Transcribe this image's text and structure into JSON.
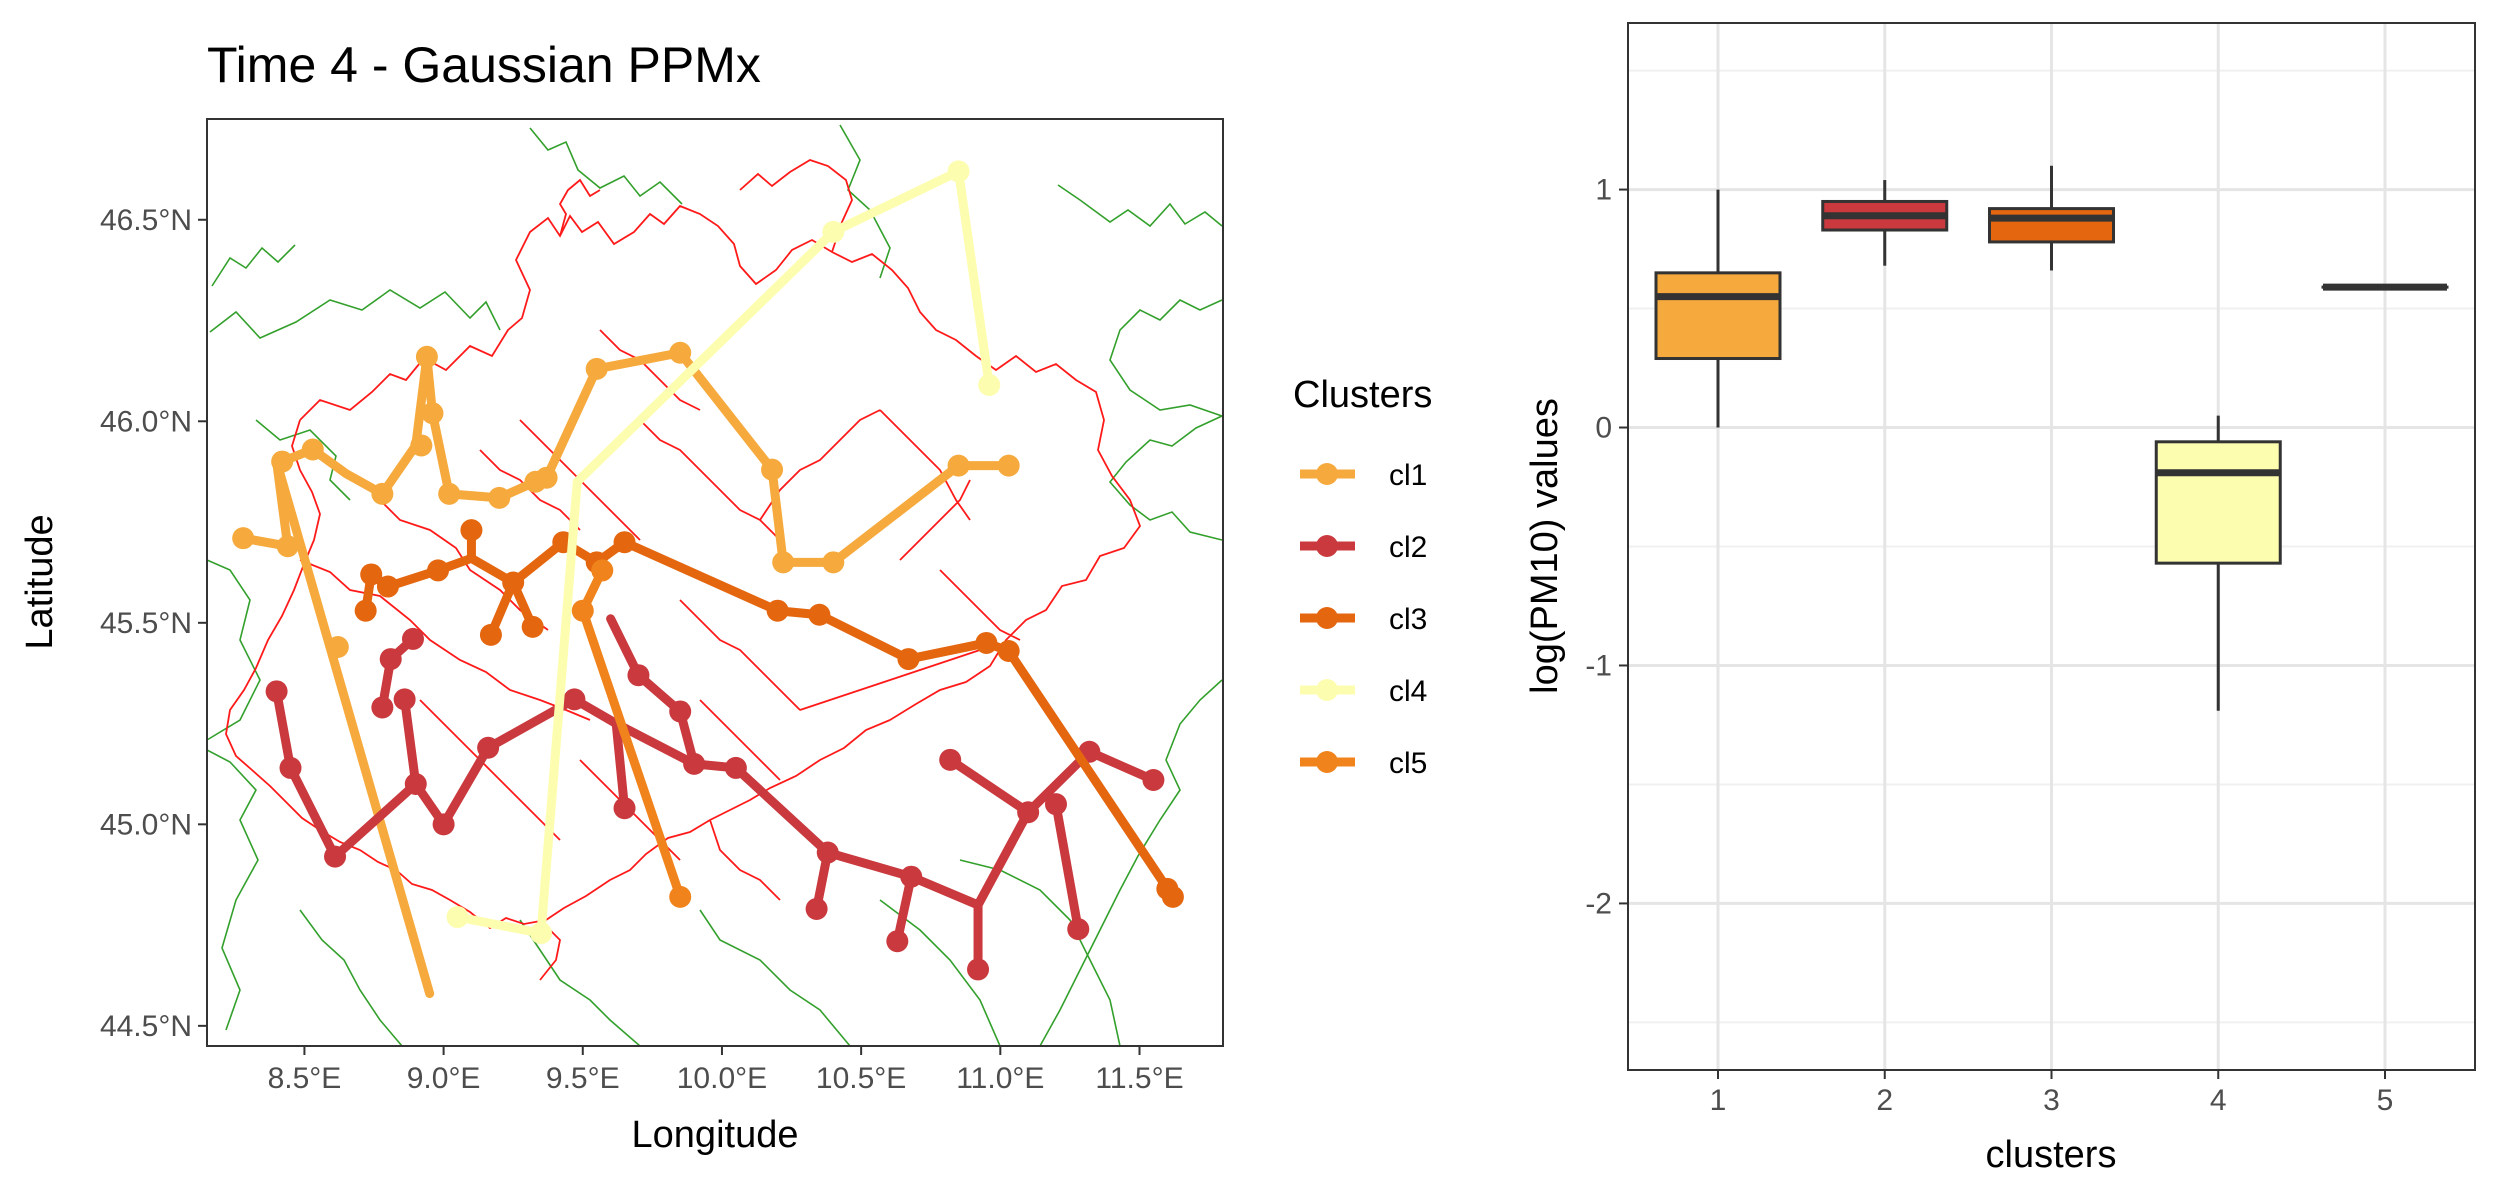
{
  "chart_data": [
    {
      "type": "scatter",
      "title": "Time 4 - Gaussian PPMx",
      "xlabel": "Longitude",
      "ylabel": "Latitude",
      "xlim": [
        8.15,
        11.8
      ],
      "ylim": [
        44.45,
        46.75
      ],
      "x_ticks": [
        8.5,
        9.0,
        9.5,
        10.0,
        10.5,
        11.0,
        11.5
      ],
      "x_tick_labels": [
        "8.5°E",
        "9.0°E",
        "9.5°E",
        "10.0°E",
        "10.5°E",
        "11.0°E",
        "11.5°E"
      ],
      "y_ticks": [
        44.5,
        45.0,
        45.5,
        46.0,
        46.5
      ],
      "y_tick_labels": [
        "44.5°N",
        "45.0°N",
        "45.5°N",
        "46.0°N",
        "46.5°N"
      ],
      "grid": false,
      "legend_title": "Clusters",
      "legend_position": "right",
      "series": [
        {
          "name": "cl1",
          "color": "#F6AA3D",
          "points": [
            [
              8.28,
              45.71
            ],
            [
              8.44,
              45.69
            ],
            [
              8.62,
              45.44
            ],
            [
              8.42,
              45.9
            ],
            [
              8.53,
              45.93
            ],
            [
              8.78,
              45.82
            ],
            [
              8.92,
              45.94
            ],
            [
              8.94,
              46.16
            ],
            [
              8.96,
              46.02
            ],
            [
              9.02,
              45.82
            ],
            [
              9.2,
              45.81
            ],
            [
              9.33,
              45.85
            ],
            [
              9.37,
              45.86
            ],
            [
              9.55,
              46.13
            ],
            [
              9.85,
              46.17
            ],
            [
              10.18,
              45.88
            ],
            [
              10.22,
              45.65
            ],
            [
              10.4,
              45.65
            ],
            [
              10.85,
              45.89
            ],
            [
              11.03,
              45.89
            ]
          ],
          "path": [
            [
              8.42,
              45.9
            ],
            [
              8.53,
              45.93
            ],
            [
              8.65,
              45.87
            ],
            [
              8.78,
              45.82
            ],
            [
              8.9,
              45.94
            ],
            [
              8.94,
              46.16
            ],
            [
              8.96,
              46.02
            ],
            [
              9.02,
              45.82
            ],
            [
              9.2,
              45.81
            ],
            [
              9.33,
              45.85
            ],
            [
              9.37,
              45.86
            ],
            [
              9.55,
              46.13
            ],
            [
              9.85,
              46.17
            ],
            [
              10.18,
              45.88
            ],
            [
              10.22,
              45.65
            ],
            [
              10.4,
              45.65
            ],
            [
              10.85,
              45.89
            ],
            [
              11.03,
              45.89
            ]
          ],
          "path2": [
            [
              8.28,
              45.71
            ],
            [
              8.44,
              45.69
            ],
            [
              8.4,
              45.9
            ],
            [
              8.95,
              44.58
            ]
          ]
        },
        {
          "name": "cl2",
          "color": "#C9393D",
          "points": [
            [
              8.4,
              45.33
            ],
            [
              8.45,
              45.14
            ],
            [
              8.61,
              44.92
            ],
            [
              8.78,
              45.29
            ],
            [
              8.81,
              45.41
            ],
            [
              8.86,
              45.31
            ],
            [
              8.89,
              45.46
            ],
            [
              8.9,
              45.1
            ],
            [
              9.0,
              45.0
            ],
            [
              9.16,
              45.19
            ],
            [
              9.47,
              45.31
            ],
            [
              9.65,
              45.04
            ],
            [
              9.7,
              45.37
            ],
            [
              9.85,
              45.28
            ],
            [
              9.9,
              45.15
            ],
            [
              10.05,
              45.14
            ],
            [
              10.34,
              44.79
            ],
            [
              10.38,
              44.93
            ],
            [
              10.63,
              44.71
            ],
            [
              10.68,
              44.87
            ],
            [
              10.82,
              45.16
            ],
            [
              10.92,
              44.64
            ],
            [
              11.1,
              45.03
            ],
            [
              11.2,
              45.05
            ],
            [
              11.28,
              44.74
            ],
            [
              11.32,
              45.18
            ],
            [
              11.55,
              45.11
            ]
          ],
          "path": [
            [
              8.4,
              45.33
            ],
            [
              8.45,
              45.14
            ],
            [
              8.61,
              44.92
            ],
            [
              8.9,
              45.1
            ],
            [
              9.0,
              45.0
            ],
            [
              9.16,
              45.19
            ],
            [
              9.47,
              45.31
            ],
            [
              9.62,
              45.25
            ],
            [
              9.9,
              45.15
            ],
            [
              10.05,
              45.14
            ],
            [
              10.38,
              44.93
            ],
            [
              10.68,
              44.87
            ],
            [
              10.92,
              44.8
            ],
            [
              11.1,
              45.03
            ],
            [
              11.32,
              45.18
            ],
            [
              11.55,
              45.11
            ]
          ],
          "path2": [
            [
              8.78,
              45.29
            ],
            [
              8.81,
              45.41
            ],
            [
              8.89,
              45.46
            ]
          ],
          "path3": [
            [
              8.86,
              45.31
            ],
            [
              8.9,
              45.1
            ]
          ],
          "path4": [
            [
              9.6,
              45.51
            ],
            [
              9.7,
              45.37
            ],
            [
              9.85,
              45.28
            ],
            [
              9.9,
              45.15
            ]
          ],
          "path5": [
            [
              9.65,
              45.04
            ],
            [
              9.62,
              45.25
            ]
          ],
          "path6": [
            [
              10.34,
              44.79
            ],
            [
              10.38,
              44.93
            ]
          ],
          "path7": [
            [
              10.63,
              44.71
            ],
            [
              10.68,
              44.87
            ]
          ],
          "path8": [
            [
              10.92,
              44.64
            ],
            [
              10.92,
              44.8
            ]
          ],
          "path9": [
            [
              10.82,
              45.16
            ],
            [
              11.1,
              45.03
            ]
          ],
          "path10": [
            [
              11.2,
              45.05
            ],
            [
              11.28,
              44.74
            ]
          ]
        },
        {
          "name": "cl3",
          "color": "#E4660F",
          "points": [
            [
              8.72,
              45.53
            ],
            [
              8.74,
              45.62
            ],
            [
              8.8,
              45.59
            ],
            [
              8.98,
              45.63
            ],
            [
              9.1,
              45.73
            ],
            [
              9.17,
              45.47
            ],
            [
              9.25,
              45.6
            ],
            [
              9.32,
              45.49
            ],
            [
              9.43,
              45.7
            ],
            [
              9.55,
              45.65
            ],
            [
              9.65,
              45.7
            ],
            [
              10.2,
              45.53
            ],
            [
              10.35,
              45.52
            ],
            [
              10.67,
              45.41
            ],
            [
              10.95,
              45.45
            ],
            [
              11.03,
              45.43
            ],
            [
              11.6,
              44.84
            ],
            [
              11.62,
              44.82
            ]
          ],
          "path": [
            [
              8.74,
              45.62
            ],
            [
              8.8,
              45.59
            ],
            [
              8.98,
              45.63
            ],
            [
              9.1,
              45.66
            ],
            [
              9.25,
              45.6
            ],
            [
              9.43,
              45.7
            ],
            [
              9.55,
              45.65
            ],
            [
              9.65,
              45.7
            ],
            [
              10.2,
              45.53
            ],
            [
              10.35,
              45.52
            ],
            [
              10.67,
              45.41
            ],
            [
              10.95,
              45.45
            ],
            [
              11.03,
              45.43
            ],
            [
              11.62,
              44.82
            ]
          ],
          "path2": [
            [
              9.1,
              45.73
            ],
            [
              9.1,
              45.66
            ]
          ],
          "path3": [
            [
              9.17,
              45.47
            ],
            [
              9.25,
              45.6
            ]
          ],
          "path4": [
            [
              9.25,
              45.6
            ],
            [
              9.32,
              45.49
            ]
          ],
          "path5": [
            [
              8.72,
              45.53
            ],
            [
              8.74,
              45.62
            ]
          ]
        },
        {
          "name": "cl4",
          "color": "#FDFDAF",
          "points": [
            [
              9.05,
              44.77
            ],
            [
              9.35,
              44.73
            ],
            [
              10.4,
              46.47
            ],
            [
              10.85,
              46.62
            ],
            [
              10.96,
              46.09
            ]
          ],
          "path": [
            [
              9.05,
              44.77
            ],
            [
              9.35,
              44.73
            ],
            [
              9.48,
              45.85
            ],
            [
              10.4,
              46.47
            ],
            [
              10.85,
              46.62
            ],
            [
              10.96,
              46.09
            ]
          ]
        },
        {
          "name": "cl5",
          "color": "#F0831B",
          "points": [
            [
              9.5,
              45.53
            ],
            [
              9.57,
              45.63
            ],
            [
              9.85,
              44.82
            ]
          ],
          "path": [
            [
              9.57,
              45.63
            ],
            [
              9.5,
              45.53
            ],
            [
              9.85,
              44.82
            ]
          ]
        }
      ]
    },
    {
      "type": "box",
      "xlabel": "clusters",
      "ylabel": "log(PM10) values",
      "categories": [
        "1",
        "2",
        "3",
        "4",
        "5"
      ],
      "ylim": [
        -2.7,
        1.7
      ],
      "y_ticks": [
        -2,
        -1,
        0,
        1
      ],
      "y_tick_labels": [
        "-2",
        "-1",
        "0",
        "1"
      ],
      "grid": true,
      "boxes": [
        {
          "category": "1",
          "color": "#F6AA3D",
          "min": 0.0,
          "q1": 0.29,
          "median": 0.55,
          "q3": 0.65,
          "max": 1.0
        },
        {
          "category": "2",
          "color": "#C9393D",
          "min": 0.68,
          "q1": 0.83,
          "median": 0.89,
          "q3": 0.95,
          "max": 1.04
        },
        {
          "category": "3",
          "color": "#E4660F",
          "min": 0.66,
          "q1": 0.78,
          "median": 0.88,
          "q3": 0.92,
          "max": 1.1
        },
        {
          "category": "4",
          "color": "#FDFDAF",
          "min": -1.19,
          "q1": -0.57,
          "median": -0.19,
          "q3": -0.06,
          "max": 0.05
        },
        {
          "category": "5",
          "color": "#F0831B",
          "min": 0.59,
          "q1": 0.59,
          "median": 0.59,
          "q3": 0.59,
          "max": 0.59
        }
      ]
    }
  ]
}
